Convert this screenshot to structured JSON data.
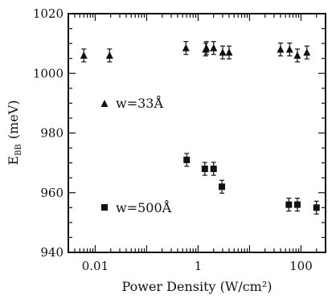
{
  "chart_data": {
    "type": "scatter",
    "xlabel": "Power Density (W/cm²)",
    "ylabel": "E",
    "ylabel_sub": "BB",
    "ylabel_unit": "(meV)",
    "xscale": "log",
    "xlim": [
      0.003,
      300
    ],
    "ylim": [
      940,
      1020
    ],
    "x_ticks": [
      {
        "value": 0.01,
        "label": "0.01"
      },
      {
        "value": 1,
        "label": "1"
      },
      {
        "value": 100,
        "label": "100"
      }
    ],
    "y_ticks": [
      {
        "value": 940,
        "label": "940"
      },
      {
        "value": 960,
        "label": "960"
      },
      {
        "value": 980,
        "label": "980"
      },
      {
        "value": 1000,
        "label": "1000"
      },
      {
        "value": 1020,
        "label": "1020"
      }
    ],
    "grid": false,
    "legend_position": "left",
    "series": [
      {
        "name": "w=33Å",
        "marker": "triangle",
        "points": [
          {
            "x": 0.006,
            "y": 1006
          },
          {
            "x": 0.019,
            "y": 1006
          },
          {
            "x": 0.58,
            "y": 1008.5
          },
          {
            "x": 1.4,
            "y": 1008
          },
          {
            "x": 1.45,
            "y": 1008.5
          },
          {
            "x": 2.0,
            "y": 1008.5
          },
          {
            "x": 3.0,
            "y": 1007
          },
          {
            "x": 4.0,
            "y": 1007
          },
          {
            "x": 40,
            "y": 1008
          },
          {
            "x": 60,
            "y": 1008
          },
          {
            "x": 85,
            "y": 1006
          },
          {
            "x": 130,
            "y": 1007
          }
        ]
      },
      {
        "name": "w=500Å",
        "marker": "square",
        "points": [
          {
            "x": 0.6,
            "y": 971
          },
          {
            "x": 1.35,
            "y": 968
          },
          {
            "x": 2.0,
            "y": 968
          },
          {
            "x": 2.9,
            "y": 962
          },
          {
            "x": 58,
            "y": 956
          },
          {
            "x": 85,
            "y": 956
          },
          {
            "x": 200,
            "y": 955
          }
        ]
      }
    ]
  }
}
